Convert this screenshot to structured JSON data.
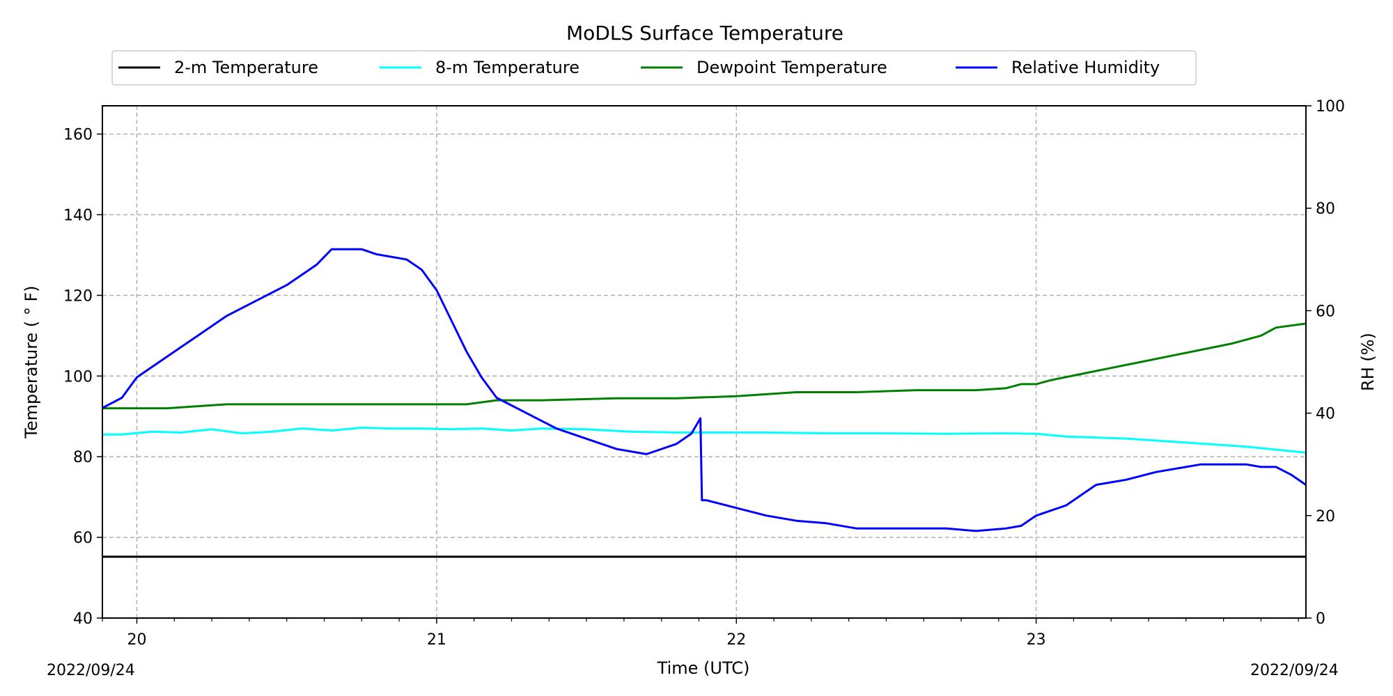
{
  "chart_data": {
    "type": "line",
    "title": "MoDLS Surface Temperature",
    "xlabel": "Time (UTC)",
    "ylabel": "Temperature ( $^\\circ$F)",
    "ylabel_display": "Temperature ( ° F)",
    "y2label": "RH (%)",
    "xlim": [
      19.885,
      23.9
    ],
    "ylim": [
      40,
      167
    ],
    "y2lim": [
      0,
      100
    ],
    "x_ticks": [
      20,
      21,
      22,
      23
    ],
    "x_tick_labels": [
      "20",
      "21",
      "22",
      "23"
    ],
    "y_ticks": [
      40,
      60,
      80,
      100,
      120,
      140,
      160
    ],
    "y_tick_labels": [
      "40",
      "60",
      "80",
      "100",
      "120",
      "140",
      "160"
    ],
    "y2_ticks": [
      0,
      20,
      40,
      60,
      80,
      100
    ],
    "y2_tick_labels": [
      "0",
      "20",
      "40",
      "60",
      "80",
      "100"
    ],
    "start_date_label": "2022/09/24",
    "end_date_label": "2022/09/24",
    "grid": true,
    "legend_position": "top-center",
    "series": [
      {
        "name": "2-m Temperature",
        "axis": "left",
        "color": "#000000",
        "x": [
          19.885,
          23.9
        ],
        "y": [
          55.2,
          55.2
        ]
      },
      {
        "name": "8-m Temperature",
        "axis": "left",
        "color": "#00ffff",
        "x": [
          19.885,
          19.95,
          20.05,
          20.15,
          20.25,
          20.35,
          20.45,
          20.55,
          20.65,
          20.75,
          20.85,
          20.95,
          21.05,
          21.15,
          21.25,
          21.35,
          21.5,
          21.65,
          21.8,
          21.95,
          22.1,
          22.3,
          22.5,
          22.7,
          22.9,
          23.0,
          23.1,
          23.3,
          23.5,
          23.7,
          23.9
        ],
        "y": [
          85.5,
          85.5,
          86.2,
          86.0,
          86.8,
          85.8,
          86.2,
          87.0,
          86.5,
          87.2,
          87.0,
          87.0,
          86.8,
          87.0,
          86.5,
          87.0,
          86.8,
          86.2,
          86.0,
          86.0,
          86.0,
          85.8,
          85.8,
          85.7,
          85.8,
          85.7,
          85.0,
          84.5,
          83.5,
          82.5,
          81.0
        ]
      },
      {
        "name": "Dewpoint Temperature",
        "axis": "left",
        "color": "#008000",
        "x": [
          19.885,
          20.1,
          20.3,
          20.5,
          20.7,
          20.9,
          21.1,
          21.2,
          21.35,
          21.6,
          21.8,
          22.0,
          22.2,
          22.4,
          22.6,
          22.8,
          22.9,
          22.95,
          23.0,
          23.05,
          23.15,
          23.25,
          23.35,
          23.45,
          23.55,
          23.65,
          23.75,
          23.8,
          23.9
        ],
        "y": [
          92,
          92,
          93,
          93,
          93,
          93,
          93,
          94,
          94,
          94.5,
          94.5,
          95,
          96,
          96,
          96.5,
          96.5,
          97,
          98,
          98,
          99,
          100.5,
          102,
          103.5,
          105,
          106.5,
          108,
          110,
          112,
          113
        ]
      },
      {
        "name": "Relative Humidity",
        "axis": "right",
        "color": "#0000ff",
        "x": [
          19.885,
          19.95,
          20.0,
          20.1,
          20.2,
          20.3,
          20.4,
          20.5,
          20.6,
          20.65,
          20.75,
          20.8,
          20.9,
          20.95,
          21.0,
          21.05,
          21.1,
          21.15,
          21.2,
          21.3,
          21.4,
          21.5,
          21.6,
          21.7,
          21.8,
          21.85,
          21.88,
          21.885,
          21.9,
          22.0,
          22.1,
          22.2,
          22.3,
          22.4,
          22.5,
          22.6,
          22.7,
          22.8,
          22.9,
          22.95,
          23.0,
          23.05,
          23.1,
          23.15,
          23.2,
          23.3,
          23.4,
          23.5,
          23.55,
          23.6,
          23.65,
          23.7,
          23.75,
          23.8,
          23.85,
          23.9
        ],
        "y": [
          41,
          43,
          47,
          51,
          55,
          59,
          62,
          65,
          69,
          72,
          72,
          71,
          70,
          68,
          64,
          58,
          52,
          47,
          43,
          40,
          37,
          35,
          33,
          32,
          34,
          36,
          39,
          23,
          23,
          21.5,
          20,
          19,
          18.5,
          17.5,
          17.5,
          17.5,
          17.5,
          17,
          17.5,
          18,
          20,
          21,
          22,
          24,
          26,
          27,
          28.5,
          29.5,
          30,
          30,
          30,
          30,
          29.5,
          29.5,
          28,
          26
        ]
      }
    ]
  }
}
